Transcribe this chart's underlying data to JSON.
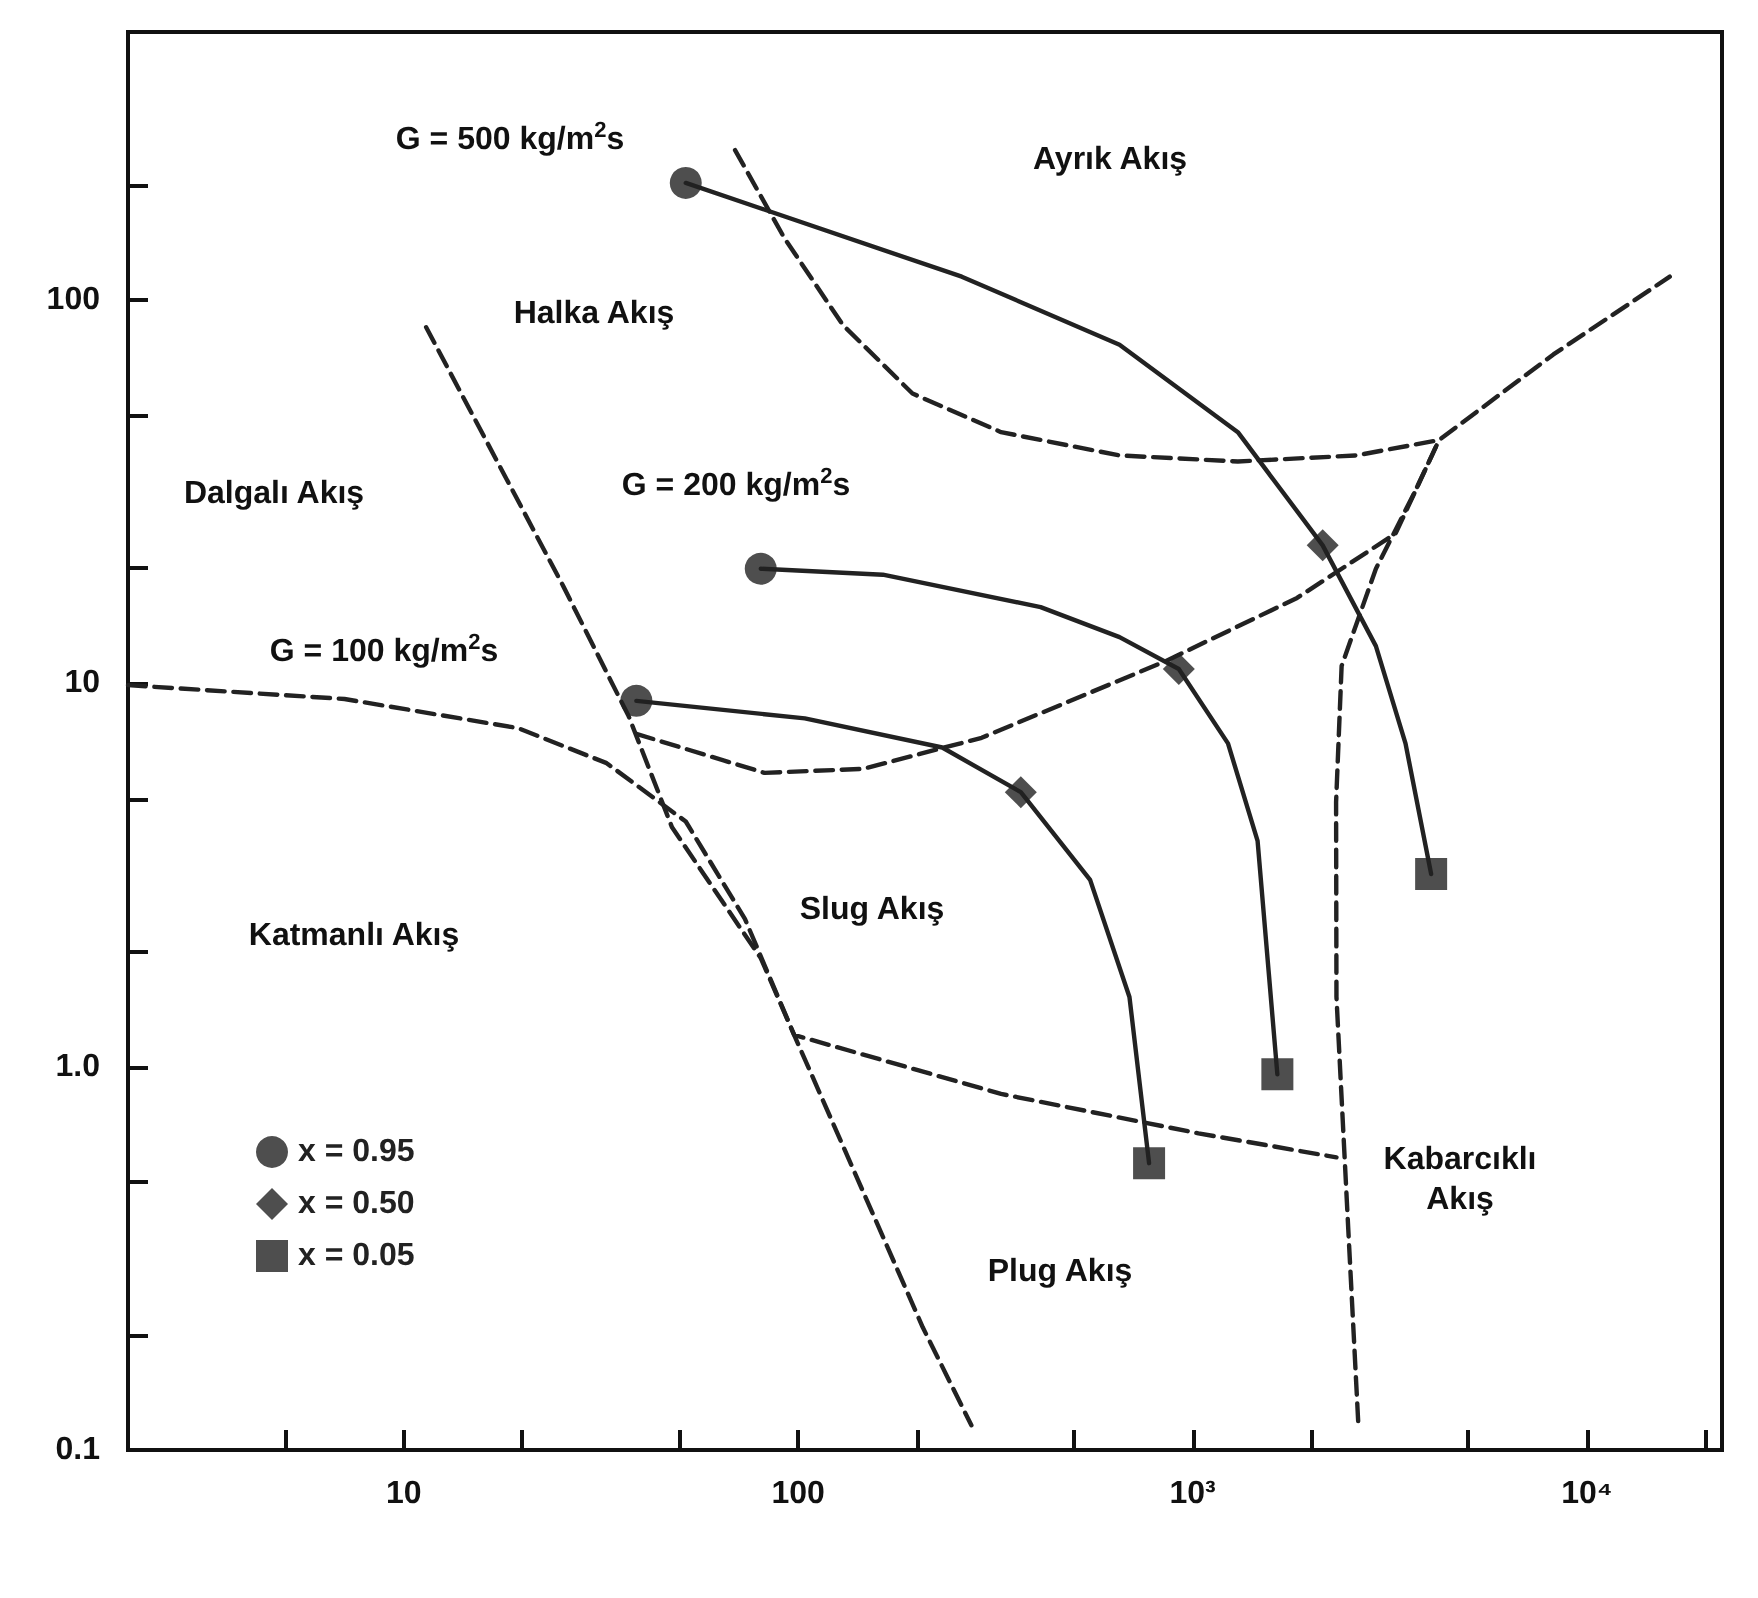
{
  "chart_data": {
    "type": "line",
    "log": "xy",
    "grid": false,
    "legend": "bottom left",
    "xlim": [
      2,
      22000
    ],
    "ylim": [
      0.1,
      500
    ],
    "xticks": [
      {
        "value": 5,
        "label": null
      },
      10,
      {
        "value": 20,
        "label": null
      },
      {
        "value": 50,
        "label": null
      },
      100,
      {
        "value": 200,
        "label": null
      },
      {
        "value": 500,
        "label": null
      },
      {
        "value": 1000,
        "label": "10³"
      },
      {
        "value": 2000,
        "label": null
      },
      {
        "value": 5000,
        "label": null
      },
      {
        "value": 10000,
        "label": "10⁴"
      },
      {
        "value": 20000,
        "label": null
      }
    ],
    "yticks": [
      0.1,
      {
        "value": 0.2,
        "label": null
      },
      {
        "value": 0.5,
        "label": null
      },
      {
        "value": 1,
        "label": "1.0"
      },
      {
        "value": 2,
        "label": null
      },
      {
        "value": 5,
        "label": null
      },
      10,
      {
        "value": 20,
        "label": null
      },
      {
        "value": 50,
        "label": null
      },
      100,
      {
        "value": 200,
        "label": null
      }
    ],
    "series": [
      {
        "line_style": "dashed",
        "color": "#222222",
        "x": [
          69.2,
          92.3,
          130,
          195,
          327,
          653,
          1303,
          2600,
          4217
        ],
        "values": [
          246,
          145,
          85.9,
          57.0,
          45.2,
          39.3,
          37.9,
          39.3,
          43.1
        ]
      },
      {
        "line_style": "dashed",
        "color": "#222222",
        "x": [
          38.9,
          82.2,
          146,
          292,
          851,
          1841,
          3273,
          4217,
          8222,
          16218
        ],
        "values": [
          7.38,
          5.84,
          5.98,
          7.21,
          11.4,
          16.7,
          24.6,
          43.1,
          72.1,
          115
        ]
      },
      {
        "line_style": "dashed",
        "color": "#222222",
        "x": [
          11.4,
          25.4,
          37.2,
          47.9,
          80.4,
          97.7,
          146,
          207,
          275
        ],
        "values": [
          84.9,
          17.9,
          8.2,
          4.21,
          1.92,
          1.21,
          0.473,
          0.209,
          0.116
        ]
      },
      {
        "line_style": "dashed",
        "color": "#222222",
        "x": [
          2,
          7.08,
          19.5,
          32.7,
          51.9,
          73.3,
          97.7,
          327,
          1035,
          2317
        ],
        "values": [
          9.89,
          9.1,
          7.64,
          6.19,
          4.36,
          2.43,
          1.21,
          0.849,
          0.67,
          0.58
        ]
      },
      {
        "line_style": "dashed",
        "color": "#222222",
        "x": [
          2630,
          2483,
          2317,
          2312,
          2388,
          2917,
          3673,
          4217
        ],
        "values": [
          0.119,
          0.375,
          1.52,
          4.9,
          11.1,
          19.9,
          31.8,
          43.1
        ]
      },
      {
        "line_style": "solid",
        "color": "#222222",
        "x": [
          51.9,
          260,
          653,
          1303,
          2138,
          2917,
          3467,
          4027
        ],
        "values": [
          202,
          115,
          76.4,
          45.2,
          22.9,
          12.5,
          6.97,
          3.18
        ]
      },
      {
        "line_style": "solid",
        "color": "#222222",
        "x": [
          80.4,
          164,
          412,
          653,
          923,
          1230,
          1462,
          1641
        ],
        "values": [
          19.9,
          19.2,
          15.8,
          13.2,
          10.9,
          6.97,
          3.88,
          0.955
        ]
      },
      {
        "line_style": "solid",
        "color": "#222222",
        "x": [
          38.9,
          104,
          232,
          367,
          550,
          692,
          776
        ],
        "values": [
          9.0,
          8.1,
          6.8,
          5.2,
          3.07,
          1.52,
          0.56
        ]
      },
      {
        "type": "scatter",
        "name": "x = 0.95",
        "marker": "circle",
        "color": "#222222",
        "x": [
          51.9,
          80.4,
          38.9
        ],
        "values": [
          202,
          19.9,
          9.0
        ]
      },
      {
        "type": "scatter",
        "name": "x = 0.50",
        "marker": "diamond",
        "color": "#222222",
        "x": [
          2138,
          923,
          367
        ],
        "values": [
          22.9,
          10.9,
          5.2
        ]
      },
      {
        "type": "scatter",
        "name": "x = 0.05",
        "marker": "square",
        "color": "#222222",
        "x": [
          4027,
          1641,
          776
        ],
        "values": [
          3.18,
          0.955,
          0.56
        ]
      }
    ],
    "annotations": [
      "G = 500 kg/m$^{2}$s",
      "Ayrık Akış",
      "Halka Akış",
      "Dalgalı Akış",
      "G = 200 kg/m$^{2}$s",
      "G = 100 kg/m$^{2}$s",
      "Katmanlı Akış",
      "Slug Akış",
      "Plug Akış",
      "Kabarcıklı\nAkış"
    ]
  }
}
